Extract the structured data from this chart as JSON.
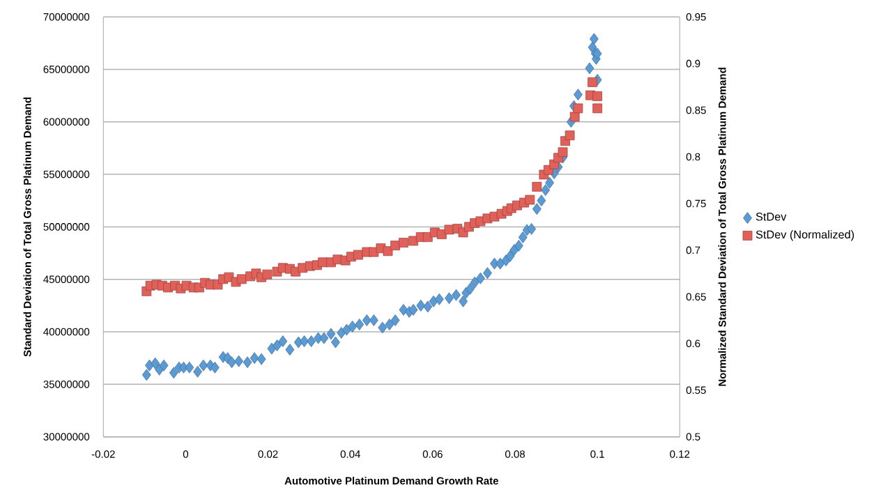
{
  "chart_data": {
    "type": "scatter",
    "xlabel": "Automotive Platinum Demand Growth Rate",
    "ylabel": "Standard Deviation of Total Gross Platinum Demand",
    "y2label": "Normalized Standard Deviation of Total Gross Platinum Demand",
    "xlim": [
      -0.02,
      0.12
    ],
    "xticks": [
      -0.02,
      0,
      0.02,
      0.04,
      0.06,
      0.08,
      0.1,
      0.12
    ],
    "ylim": [
      30000000,
      70000000
    ],
    "yticks": [
      30000000,
      35000000,
      40000000,
      45000000,
      50000000,
      55000000,
      60000000,
      65000000,
      70000000
    ],
    "y2lim": [
      0.5,
      0.95
    ],
    "y2ticks": [
      0.5,
      0.55,
      0.6,
      0.65,
      0.7,
      0.75,
      0.8,
      0.85,
      0.9,
      0.95
    ],
    "grid": "y",
    "legend": "right",
    "series": [
      {
        "name": "StDev",
        "color": "#5b9bd5",
        "marker": "diamond",
        "x": [
          -0.0095,
          -0.0088,
          -0.0074,
          -0.0064,
          -0.0053,
          -0.0029,
          -0.0016,
          -0.0005,
          0.0009,
          0.0029,
          0.0043,
          0.006,
          0.0071,
          0.0091,
          0.0102,
          0.0112,
          0.0129,
          0.015,
          0.0167,
          0.0184,
          0.0209,
          0.0222,
          0.0236,
          0.0253,
          0.0274,
          0.0288,
          0.0305,
          0.0322,
          0.0336,
          0.0353,
          0.0364,
          0.0378,
          0.0391,
          0.0405,
          0.0422,
          0.044,
          0.0457,
          0.0478,
          0.0495,
          0.0509,
          0.0529,
          0.0543,
          0.0553,
          0.0571,
          0.0588,
          0.0602,
          0.0616,
          0.064,
          0.0657,
          0.0674,
          0.0681,
          0.0691,
          0.0702,
          0.0716,
          0.0733,
          0.075,
          0.0764,
          0.0778,
          0.0788,
          0.0798,
          0.0809,
          0.0819,
          0.0829,
          0.084,
          0.0853,
          0.0864,
          0.0874,
          0.0884,
          0.0895,
          0.0905,
          0.0916,
          0.0926,
          0.0936,
          0.0943,
          0.0953,
          0.0981,
          0.0988,
          0.0992,
          0.0995,
          0.0997,
          0.1,
          0.1
        ],
        "values": [
          35900000,
          36800000,
          37000000,
          36400000,
          36800000,
          36100000,
          36600000,
          36600000,
          36600000,
          36200000,
          36800000,
          36800000,
          36600000,
          37600000,
          37500000,
          37100000,
          37200000,
          37100000,
          37500000,
          37400000,
          38400000,
          38700000,
          39100000,
          38300000,
          39000000,
          39100000,
          39100000,
          39400000,
          39400000,
          39800000,
          39000000,
          39900000,
          40200000,
          40500000,
          40700000,
          41100000,
          41100000,
          40400000,
          40700000,
          41100000,
          42100000,
          41900000,
          42100000,
          42500000,
          42400000,
          42900000,
          43100000,
          43200000,
          43500000,
          42900000,
          43700000,
          44100000,
          44700000,
          45100000,
          45600000,
          46500000,
          46500000,
          46800000,
          47200000,
          47800000,
          48200000,
          49000000,
          49700000,
          49800000,
          51700000,
          52500000,
          53500000,
          54200000,
          55100000,
          55700000,
          56600000,
          null,
          60000000,
          61500000,
          62600000,
          65100000,
          67100000,
          67900000,
          66500000,
          66000000,
          66500000,
          64000000
        ]
      },
      {
        "name": "StDev (Normalized)",
        "color": "#e0605a",
        "marker": "square",
        "axis": "y2",
        "x": [
          -0.0095,
          -0.0086,
          -0.0071,
          -0.0057,
          -0.0043,
          -0.0026,
          -0.0012,
          0.0002,
          0.0019,
          0.0033,
          0.0047,
          0.006,
          0.0078,
          0.0091,
          0.0105,
          0.0122,
          0.0136,
          0.0157,
          0.0171,
          0.0184,
          0.0198,
          0.0222,
          0.0236,
          0.0253,
          0.0267,
          0.0284,
          0.0302,
          0.0319,
          0.0333,
          0.0353,
          0.0369,
          0.0388,
          0.0402,
          0.0419,
          0.044,
          0.0457,
          0.0474,
          0.0491,
          0.0509,
          0.0529,
          0.0553,
          0.0571,
          0.0588,
          0.0605,
          0.0622,
          0.064,
          0.066,
          0.0674,
          0.0688,
          0.0702,
          0.0716,
          0.0733,
          0.075,
          0.0767,
          0.0781,
          0.0791,
          0.0805,
          0.0822,
          0.0836,
          0.0853,
          0.087,
          0.0881,
          0.0895,
          0.0905,
          0.0916,
          0.0922,
          0.0933,
          0.0945,
          0.0953,
          0.0983,
          0.0988,
          0.1,
          0.1
        ],
        "values": [
          0.656,
          0.662,
          0.663,
          0.662,
          0.66,
          0.662,
          0.659,
          0.662,
          0.66,
          0.66,
          0.665,
          0.663,
          0.663,
          0.669,
          0.671,
          0.666,
          0.669,
          0.672,
          0.675,
          0.671,
          0.674,
          0.677,
          0.681,
          0.68,
          0.677,
          0.681,
          0.683,
          0.684,
          0.687,
          0.687,
          0.69,
          0.689,
          0.693,
          0.695,
          0.698,
          0.698,
          0.702,
          0.699,
          0.705,
          0.708,
          0.71,
          0.714,
          0.714,
          0.719,
          0.717,
          0.722,
          0.723,
          0.719,
          0.725,
          0.729,
          0.731,
          0.734,
          0.736,
          0.739,
          0.742,
          0.745,
          0.748,
          0.751,
          0.754,
          0.768,
          0.781,
          0.786,
          0.792,
          0.799,
          0.805,
          0.817,
          0.823,
          0.843,
          0.852,
          0.866,
          0.88,
          0.865,
          0.852
        ]
      }
    ]
  }
}
